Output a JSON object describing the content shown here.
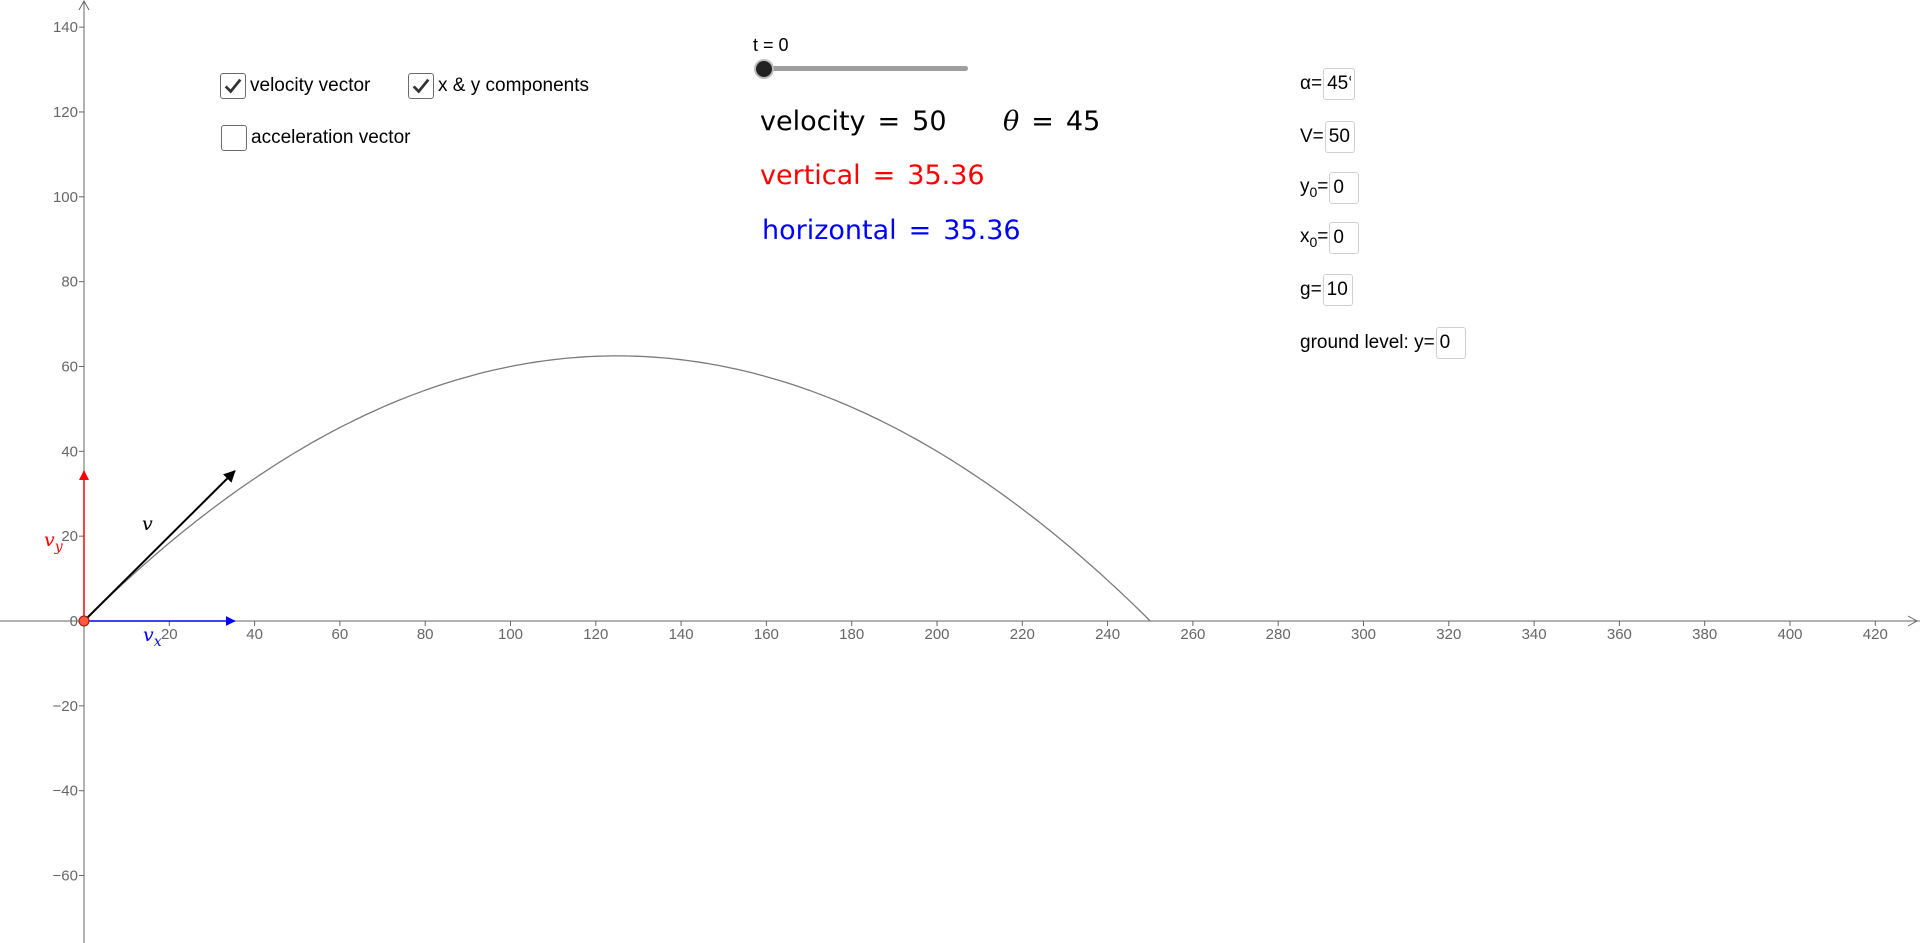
{
  "controls": {
    "velocity_vector_label": "velocity vector",
    "velocity_vector_checked": true,
    "components_label": "x & y components",
    "components_checked": true,
    "acceleration_label": "acceleration vector",
    "acceleration_checked": false
  },
  "slider": {
    "label": "t = 0",
    "value": 0
  },
  "readouts": {
    "velocity_name": "velocity",
    "velocity_eq": "=",
    "velocity_value": "50",
    "theta_symbol": "θ",
    "theta_eq": "=",
    "theta_value": "45",
    "vertical_name": "vertical",
    "vertical_eq": "=",
    "vertical_value": "35.36",
    "horizontal_name": "horizontal",
    "horizontal_eq": "=",
    "horizontal_value": "35.36",
    "vertical_color": "#ff0000",
    "horizontal_color": "#0000ff"
  },
  "params": {
    "alpha_label": "α=",
    "alpha_value": "45°",
    "v_label": "V=",
    "v_value": "50",
    "y0_label": "y",
    "y0_sub": "0",
    "y0_eq": "=",
    "y0_value": "0",
    "x0_label": "x",
    "x0_sub": "0",
    "x0_eq": "=",
    "x0_value": "0",
    "g_label": "g=",
    "g_value": "10",
    "ground_label": "ground level: y=",
    "ground_value": "0"
  },
  "vector_labels": {
    "v": "v",
    "vy_base": "v",
    "vy_sub": "y",
    "vx_base": "v",
    "vx_sub": "x"
  },
  "chart_data": {
    "type": "line",
    "xlim": [
      -20,
      435
    ],
    "ylim": [
      -75,
      145
    ],
    "x_ticks": [
      20,
      40,
      60,
      80,
      100,
      120,
      140,
      160,
      180,
      200,
      220,
      240,
      260,
      280,
      300,
      320,
      340,
      360,
      380,
      400,
      420
    ],
    "y_ticks": [
      -60,
      -40,
      -20,
      0,
      20,
      40,
      60,
      80,
      100,
      120,
      140
    ],
    "trajectory": {
      "v0": 50,
      "angle_deg": 45,
      "g": 10,
      "x0": 0,
      "y0": 0,
      "range": 250,
      "max_height": 62.5
    },
    "vectors": {
      "velocity": {
        "from": [
          0,
          0
        ],
        "to": [
          35.36,
          35.36
        ],
        "color": "#000000"
      },
      "vertical": {
        "from": [
          0,
          0
        ],
        "to": [
          0,
          35.36
        ],
        "color": "#ff0000"
      },
      "horizontal": {
        "from": [
          0,
          0
        ],
        "to": [
          35.36,
          0
        ],
        "color": "#0000ff"
      }
    },
    "ground_level": 0,
    "point": {
      "x": 0,
      "y": 0,
      "color": "#ff5a3c"
    },
    "grid": false
  }
}
